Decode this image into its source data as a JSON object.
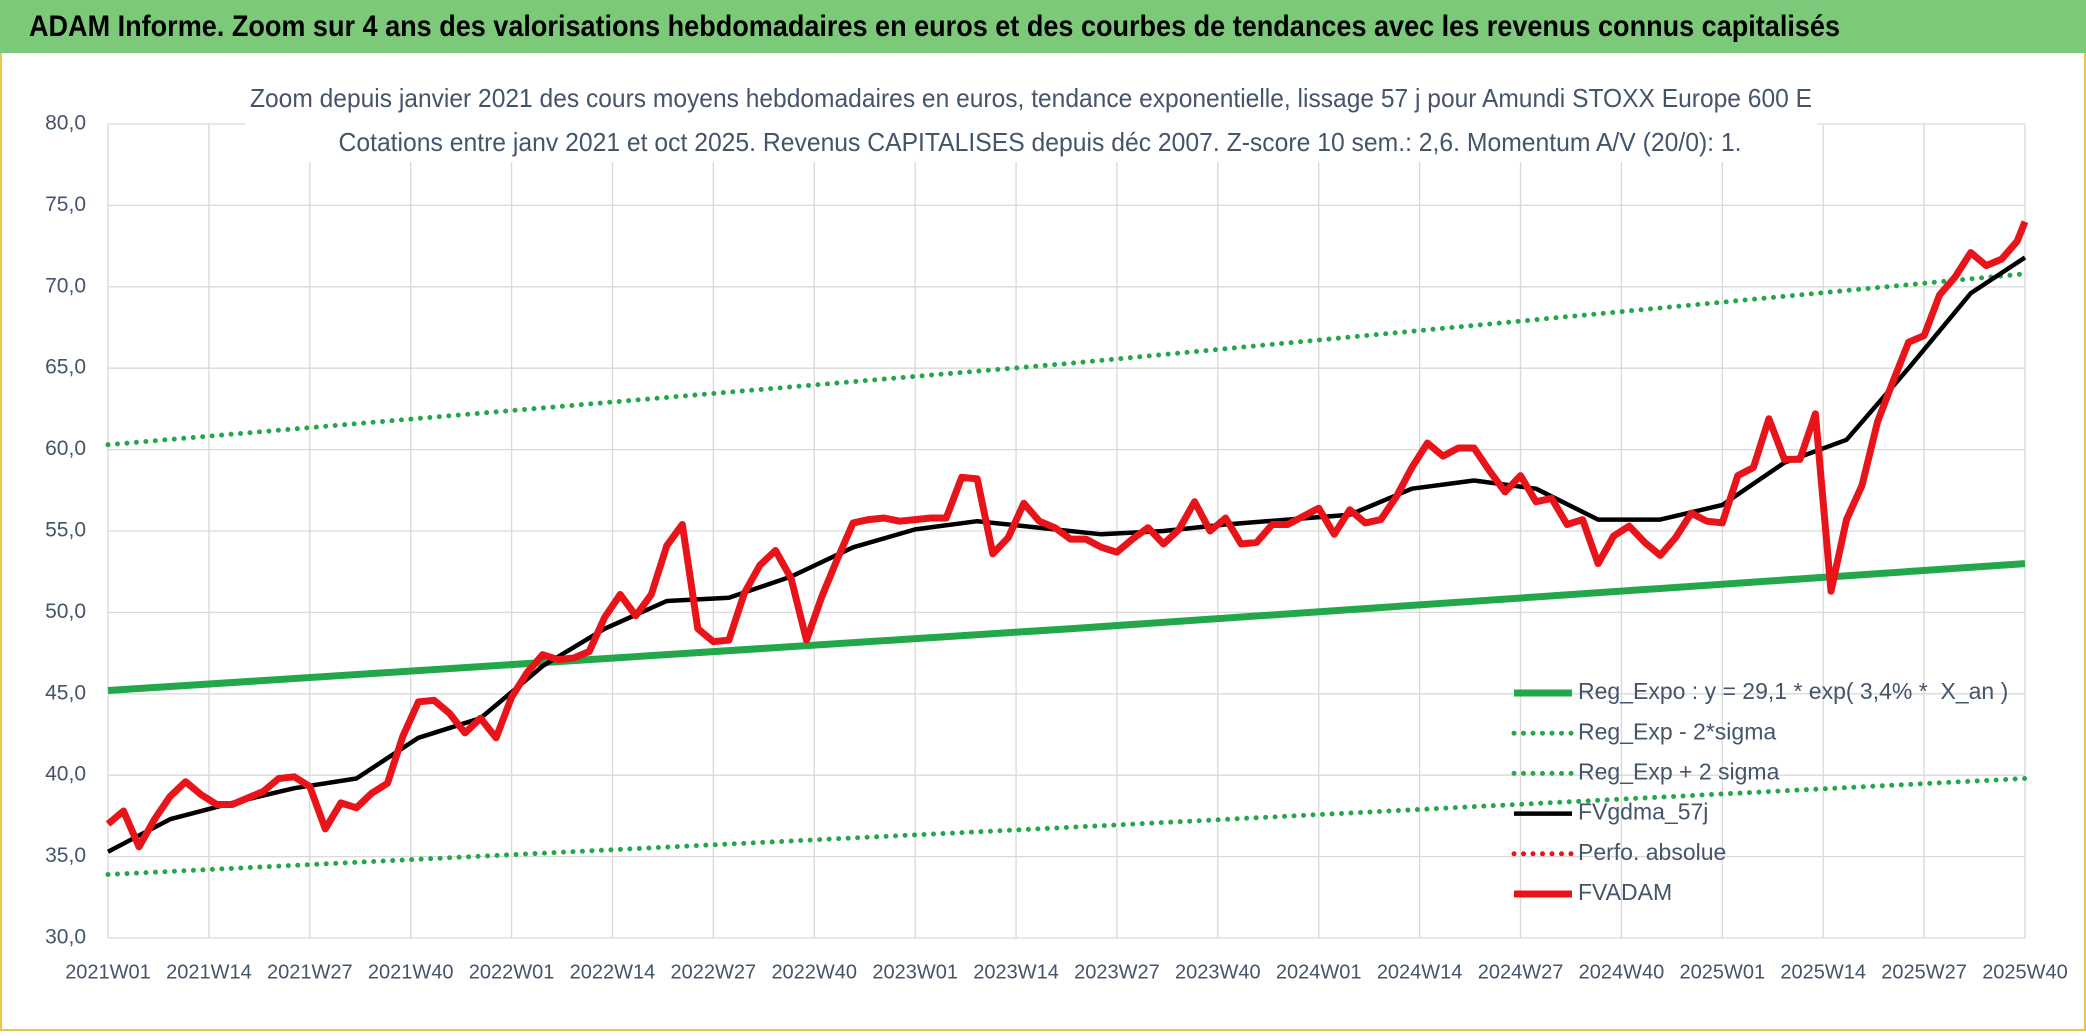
{
  "header": {
    "title": "ADAM Informe. Zoom sur 4 ans des valorisations hebdomadaires en euros et des courbes de tendances avec les revenus connus capitalisés"
  },
  "chart_data": {
    "type": "line",
    "title": "Zoom depuis janvier 2021 des cours moyens hebdomadaires en euros, tendance exponentielle, lissage 57 j pour Amundi STOXX Europe 600 E",
    "subtitle": "Cotations entre janv 2021 et oct 2025. Revenus CAPITALISES depuis déc 2007. Z-score 10 sem.: 2,6. Momentum A/V (20/0): 1.",
    "xlim": [
      0,
      247
    ],
    "xticks": [
      {
        "value": 0,
        "label": "2021W01"
      },
      {
        "value": 13,
        "label": "2021W14"
      },
      {
        "value": 26,
        "label": "2021W27"
      },
      {
        "value": 39,
        "label": "2021W40"
      },
      {
        "value": 52,
        "label": "2022W01"
      },
      {
        "value": 65,
        "label": "2022W14"
      },
      {
        "value": 78,
        "label": "2022W27"
      },
      {
        "value": 91,
        "label": "2022W40"
      },
      {
        "value": 104,
        "label": "2023W01"
      },
      {
        "value": 117,
        "label": "2023W14"
      },
      {
        "value": 130,
        "label": "2023W27"
      },
      {
        "value": 143,
        "label": "2023W40"
      },
      {
        "value": 156,
        "label": "2024W01"
      },
      {
        "value": 169,
        "label": "2024W14"
      },
      {
        "value": 182,
        "label": "2024W27"
      },
      {
        "value": 195,
        "label": "2024W40"
      },
      {
        "value": 208,
        "label": "2025W01"
      },
      {
        "value": 221,
        "label": "2025W14"
      },
      {
        "value": 234,
        "label": "2025W27"
      },
      {
        "value": 247,
        "label": "2025W40"
      }
    ],
    "ylim": [
      30,
      80
    ],
    "yticks": [
      {
        "value": 30,
        "label": "30,0"
      },
      {
        "value": 35,
        "label": "35,0"
      },
      {
        "value": 40,
        "label": "40,0"
      },
      {
        "value": 45,
        "label": "45,0"
      },
      {
        "value": 50,
        "label": "50,0"
      },
      {
        "value": 55,
        "label": "55,0"
      },
      {
        "value": 60,
        "label": "60,0"
      },
      {
        "value": 65,
        "label": "65,0"
      },
      {
        "value": 70,
        "label": "70,0"
      },
      {
        "value": 75,
        "label": "75,0"
      },
      {
        "value": 80,
        "label": "80,0"
      }
    ],
    "grid": true,
    "series": [
      {
        "name": "Reg_Expo : y = 29,1 * exp( 3,4% *  X_an )",
        "color": "#22a84a",
        "style": "solid",
        "x": [
          0,
          124,
          247
        ],
        "values": [
          45.2,
          49.0,
          53.0
        ]
      },
      {
        "name": "Reg_Exp - 2*sigma",
        "color": "#22a84a",
        "style": "dotted",
        "x": [
          0,
          124,
          247
        ],
        "values": [
          33.9,
          36.8,
          39.8
        ]
      },
      {
        "name": "Reg_Exp + 2 sigma",
        "color": "#22a84a",
        "style": "dotted",
        "x": [
          0,
          124,
          247
        ],
        "values": [
          60.3,
          65.3,
          70.8
        ]
      },
      {
        "name": "FVgdma_57j",
        "color": "#000000",
        "style": "solid",
        "x": [
          0,
          8,
          16,
          24,
          32,
          40,
          48,
          56,
          64,
          72,
          80,
          88,
          96,
          104,
          112,
          120,
          128,
          136,
          144,
          152,
          160,
          168,
          176,
          184,
          192,
          200,
          208,
          216,
          224,
          232,
          240,
          247
        ],
        "values": [
          35.3,
          37.3,
          38.3,
          39.2,
          39.8,
          42.3,
          43.5,
          46.7,
          49.0,
          50.7,
          50.9,
          52.2,
          54.0,
          55.1,
          55.6,
          55.2,
          54.8,
          55.0,
          55.4,
          55.7,
          56.0,
          57.6,
          58.1,
          57.6,
          55.7,
          55.7,
          56.6,
          59.2,
          60.6,
          65.0,
          69.6,
          71.8
        ]
      },
      {
        "name": "Perfo. absolue",
        "color": "#e8141a",
        "style": "dotted",
        "x": [],
        "values": []
      },
      {
        "name": "FVADAM",
        "color": "#e8141a",
        "style": "thick",
        "x": [
          0,
          2,
          4,
          6,
          8,
          10,
          12,
          14,
          16,
          18,
          20,
          22,
          24,
          26,
          28,
          30,
          32,
          34,
          36,
          38,
          40,
          42,
          44,
          46,
          48,
          50,
          52,
          54,
          56,
          58,
          60,
          62,
          64,
          66,
          68,
          70,
          72,
          74,
          76,
          78,
          80,
          82,
          84,
          86,
          88,
          90,
          92,
          94,
          96,
          98,
          100,
          102,
          104,
          106,
          108,
          110,
          112,
          114,
          116,
          118,
          120,
          122,
          124,
          126,
          128,
          130,
          132,
          134,
          136,
          138,
          140,
          142,
          144,
          146,
          148,
          150,
          152,
          154,
          156,
          158,
          160,
          162,
          164,
          166,
          168,
          170,
          172,
          174,
          176,
          178,
          180,
          182,
          184,
          186,
          188,
          190,
          192,
          194,
          196,
          198,
          200,
          202,
          204,
          206,
          208,
          210,
          212,
          214,
          216,
          218,
          220,
          222,
          224,
          226,
          228,
          230,
          232,
          234,
          236,
          238,
          240,
          242,
          244,
          246,
          247
        ],
        "values": [
          37.0,
          37.8,
          35.6,
          37.3,
          38.7,
          39.6,
          38.8,
          38.2,
          38.2,
          38.6,
          39.0,
          39.8,
          39.9,
          39.3,
          36.7,
          38.3,
          38.0,
          38.9,
          39.5,
          42.4,
          44.5,
          44.6,
          43.8,
          42.6,
          43.5,
          42.3,
          44.8,
          46.3,
          47.4,
          47.1,
          47.2,
          47.6,
          49.7,
          51.1,
          49.8,
          51.1,
          54.1,
          55.4,
          49.0,
          48.2,
          48.3,
          51.2,
          52.9,
          53.8,
          52.1,
          48.3,
          51.0,
          53.3,
          55.5,
          55.7,
          55.8,
          55.6,
          55.7,
          55.8,
          55.8,
          58.3,
          58.2,
          53.6,
          54.6,
          56.7,
          55.6,
          55.2,
          54.5,
          54.5,
          54.0,
          53.7,
          54.5,
          55.2,
          54.2,
          55.1,
          56.8,
          55.0,
          55.8,
          54.2,
          54.3,
          55.4,
          55.4,
          55.9,
          56.4,
          54.8,
          56.3,
          55.5,
          55.7,
          57.1,
          58.9,
          60.4,
          59.6,
          60.1,
          60.1,
          58.7,
          57.4,
          58.4,
          56.8,
          57.0,
          55.4,
          55.7,
          53.0,
          54.7,
          55.3,
          54.3,
          53.5,
          54.6,
          56.1,
          55.6,
          55.5,
          58.4,
          58.9,
          61.9,
          59.4,
          59.4,
          62.2,
          51.3,
          55.7,
          57.8,
          61.7,
          64.2,
          66.6,
          67.0,
          69.5,
          70.6,
          72.1,
          71.3,
          71.7,
          72.8,
          74.0
        ]
      }
    ]
  }
}
